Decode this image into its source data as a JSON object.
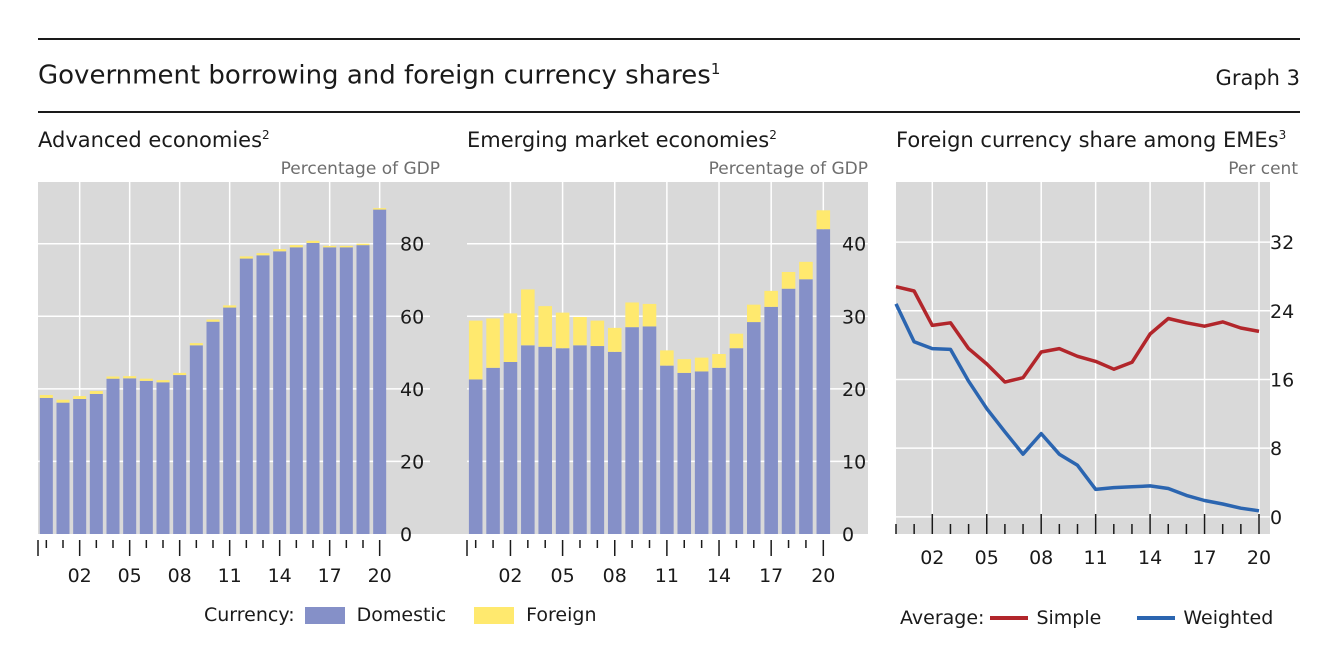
{
  "header": {
    "title": "Government borrowing and foreign currency shares",
    "title_sup": "1",
    "graph_label": "Graph 3"
  },
  "colors": {
    "domestic": "#8590c8",
    "foreign": "#ffe96e",
    "simple": "#b2262b",
    "weighted": "#2b65b0",
    "panel_bg": "#d9d9d9"
  },
  "legend_left": {
    "prefix": "Currency:",
    "items": [
      "Domestic",
      "Foreign"
    ]
  },
  "legend_right": {
    "prefix": "Average:",
    "items": [
      "Simple",
      "Weighted"
    ]
  },
  "chart_data": [
    {
      "type": "bar",
      "title": "Advanced economies",
      "title_sup": "2",
      "unit": "Percentage of GDP",
      "stacked": true,
      "x": [
        2000,
        2001,
        2002,
        2003,
        2004,
        2005,
        2006,
        2007,
        2008,
        2009,
        2010,
        2011,
        2012,
        2013,
        2014,
        2015,
        2016,
        2017,
        2018,
        2019,
        2020
      ],
      "series": [
        {
          "name": "Domestic",
          "values": [
            37.5,
            36.2,
            37.2,
            38.6,
            42.8,
            42.9,
            42.2,
            41.8,
            43.8,
            52.0,
            58.5,
            62.4,
            75.9,
            76.8,
            77.9,
            79.0,
            80.2,
            79.0,
            79.0,
            79.6,
            89.4
          ]
        },
        {
          "name": "Foreign",
          "values": [
            0.8,
            0.8,
            0.8,
            0.8,
            0.6,
            0.6,
            0.6,
            0.6,
            0.6,
            0.6,
            0.6,
            0.6,
            0.6,
            0.6,
            0.6,
            0.6,
            0.6,
            0.4,
            0.4,
            0.4,
            0.4
          ]
        }
      ],
      "ylim": [
        0,
        97
      ],
      "yticks": [
        0,
        20,
        40,
        60,
        80
      ],
      "xtick_labels": [
        "02",
        "05",
        "08",
        "11",
        "14",
        "17",
        "20"
      ],
      "grid": true
    },
    {
      "type": "bar",
      "title": "Emerging market economies",
      "title_sup": "2",
      "unit": "Percentage of GDP",
      "stacked": true,
      "x": [
        2000,
        2001,
        2002,
        2003,
        2004,
        2005,
        2006,
        2007,
        2008,
        2009,
        2010,
        2011,
        2012,
        2013,
        2014,
        2015,
        2016,
        2017,
        2018,
        2019,
        2020
      ],
      "series": [
        {
          "name": "Domestic",
          "values": [
            21.3,
            22.9,
            23.7,
            26.0,
            25.8,
            25.6,
            26.0,
            25.9,
            25.1,
            28.5,
            28.6,
            23.2,
            22.2,
            22.4,
            22.9,
            25.6,
            29.2,
            31.3,
            33.8,
            35.1,
            42.0
          ]
        },
        {
          "name": "Foreign",
          "values": [
            8.1,
            6.8,
            6.7,
            7.7,
            5.6,
            4.9,
            3.9,
            3.5,
            3.3,
            3.4,
            3.1,
            2.1,
            1.9,
            1.9,
            1.9,
            2.0,
            2.4,
            2.2,
            2.3,
            2.4,
            2.6
          ]
        }
      ],
      "ylim": [
        0,
        48.5
      ],
      "yticks": [
        0,
        10,
        20,
        30,
        40
      ],
      "xtick_labels": [
        "02",
        "05",
        "08",
        "11",
        "14",
        "17",
        "20"
      ],
      "grid": true
    },
    {
      "type": "line",
      "title": "Foreign currency share among EMEs",
      "title_sup": "3",
      "unit": "Per cent",
      "x": [
        2000,
        2001,
        2002,
        2003,
        2004,
        2005,
        2006,
        2007,
        2008,
        2009,
        2010,
        2011,
        2012,
        2013,
        2014,
        2015,
        2016,
        2017,
        2018,
        2019,
        2020
      ],
      "series": [
        {
          "name": "Simple",
          "values": [
            26.8,
            26.3,
            22.3,
            22.6,
            19.6,
            17.8,
            15.7,
            16.2,
            19.2,
            19.6,
            18.7,
            18.1,
            17.2,
            18.0,
            21.3,
            23.1,
            22.6,
            22.2,
            22.7,
            22.0,
            21.6
          ]
        },
        {
          "name": "Weighted",
          "values": [
            24.8,
            20.4,
            19.6,
            19.5,
            15.8,
            12.6,
            9.9,
            7.3,
            9.7,
            7.3,
            6.0,
            3.2,
            3.4,
            3.5,
            3.6,
            3.3,
            2.5,
            1.9,
            1.5,
            1.0,
            0.7
          ]
        }
      ],
      "ylim": [
        -2,
        39
      ],
      "yticks": [
        0,
        8,
        16,
        24,
        32
      ],
      "xtick_labels": [
        "02",
        "05",
        "08",
        "11",
        "14",
        "17",
        "20"
      ],
      "grid": true
    }
  ]
}
